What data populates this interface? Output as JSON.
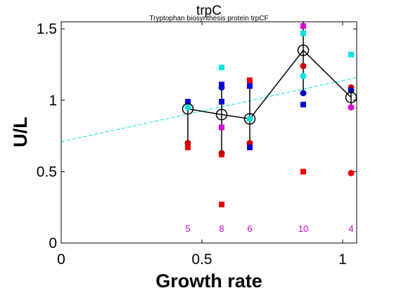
{
  "chart_data": {
    "type": "scatter",
    "title": "trpC",
    "subtitle": "Tryptophan biosynthesis protein trpCF",
    "xlabel": "Growth rate",
    "ylabel": "U/L",
    "xlim": [
      0,
      1.05
    ],
    "ylim": [
      0,
      1.55
    ],
    "xticks": [
      0,
      0.5,
      1
    ],
    "yticks": [
      0,
      0.5,
      1,
      1.5
    ],
    "xtick_labels": [
      "0",
      "0.5",
      "1"
    ],
    "ytick_labels": [
      "0",
      "0.5",
      "1",
      "1.5"
    ],
    "grid": false,
    "fit_line": {
      "x": [
        0,
        1.05
      ],
      "y": [
        0.71,
        1.16
      ],
      "color": "#00e5e5"
    },
    "mean_series": {
      "x": [
        0.45,
        0.57,
        0.67,
        0.86,
        1.03
      ],
      "y": [
        0.94,
        0.9,
        0.87,
        1.35,
        1.02
      ],
      "error_low": [
        0.7,
        0.63,
        0.7,
        1.05,
        0.95
      ],
      "error_high": [
        0.94,
        1.09,
        1.1,
        1.55,
        1.09
      ]
    },
    "counts": [
      {
        "x": 0.45,
        "label": "5"
      },
      {
        "x": 0.57,
        "label": "8"
      },
      {
        "x": 0.67,
        "label": "6"
      },
      {
        "x": 0.86,
        "label": "10"
      },
      {
        "x": 1.03,
        "label": "4"
      }
    ],
    "count_color": "#cc00cc",
    "points": [
      {
        "x": 0.45,
        "y": 0.99,
        "color": "#0000dd",
        "shape": "square"
      },
      {
        "x": 0.45,
        "y": 0.67,
        "color": "#ee0000",
        "shape": "square"
      },
      {
        "x": 0.45,
        "y": 0.7,
        "color": "#cc0000",
        "shape": "circle"
      },
      {
        "x": 0.45,
        "y": 0.95,
        "color": "#00dddd",
        "shape": "circle"
      },
      {
        "x": 0.57,
        "y": 1.23,
        "color": "#00e5e5",
        "shape": "square"
      },
      {
        "x": 0.57,
        "y": 1.11,
        "color": "#0000dd",
        "shape": "square"
      },
      {
        "x": 0.57,
        "y": 1.09,
        "color": "#0000cc",
        "shape": "circle"
      },
      {
        "x": 0.57,
        "y": 0.99,
        "color": "#0000dd",
        "shape": "square"
      },
      {
        "x": 0.57,
        "y": 0.81,
        "color": "#dd00dd",
        "shape": "square"
      },
      {
        "x": 0.57,
        "y": 0.62,
        "color": "#ee0000",
        "shape": "square"
      },
      {
        "x": 0.57,
        "y": 0.63,
        "color": "#cc0000",
        "shape": "circle"
      },
      {
        "x": 0.57,
        "y": 0.27,
        "color": "#ee0000",
        "shape": "square"
      },
      {
        "x": 0.67,
        "y": 1.14,
        "color": "#ee0000",
        "shape": "square"
      },
      {
        "x": 0.67,
        "y": 1.1,
        "color": "#0000dd",
        "shape": "square"
      },
      {
        "x": 0.67,
        "y": 0.87,
        "color": "#00dddd",
        "shape": "circle"
      },
      {
        "x": 0.67,
        "y": 0.7,
        "color": "#cc0000",
        "shape": "circle"
      },
      {
        "x": 0.67,
        "y": 0.67,
        "color": "#0000dd",
        "shape": "square"
      },
      {
        "x": 0.86,
        "y": 1.52,
        "color": "#dd00dd",
        "shape": "square"
      },
      {
        "x": 0.86,
        "y": 1.47,
        "color": "#00e5e5",
        "shape": "square"
      },
      {
        "x": 0.86,
        "y": 1.24,
        "color": "#cc0000",
        "shape": "circle"
      },
      {
        "x": 0.86,
        "y": 1.17,
        "color": "#00e5e5",
        "shape": "circle"
      },
      {
        "x": 0.86,
        "y": 1.05,
        "color": "#0000cc",
        "shape": "circle"
      },
      {
        "x": 0.86,
        "y": 0.97,
        "color": "#0000dd",
        "shape": "square"
      },
      {
        "x": 0.86,
        "y": 0.5,
        "color": "#ee0000",
        "shape": "square"
      },
      {
        "x": 1.03,
        "y": 1.32,
        "color": "#00e5e5",
        "shape": "square"
      },
      {
        "x": 1.03,
        "y": 1.09,
        "color": "#cc0000",
        "shape": "circle"
      },
      {
        "x": 1.03,
        "y": 1.07,
        "color": "#0000cc",
        "shape": "circle"
      },
      {
        "x": 1.03,
        "y": 0.95,
        "color": "#dd00dd",
        "shape": "circle"
      },
      {
        "x": 1.03,
        "y": 0.49,
        "color": "#ee0000",
        "shape": "circle"
      }
    ]
  }
}
